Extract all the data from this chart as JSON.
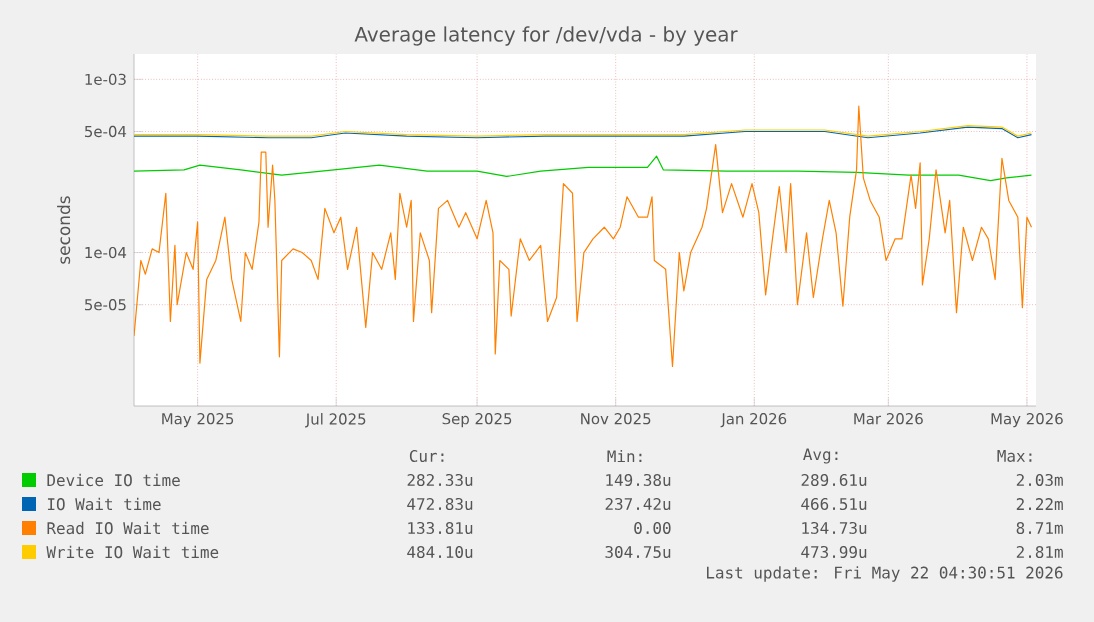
{
  "chart_data": {
    "type": "line",
    "title": "Average latency for /dev/vda - by year",
    "ylabel": "seconds",
    "log": true,
    "grid": true,
    "legend": "bottom",
    "xlim": [
      "2025-04-03",
      "2026-05-05"
    ],
    "ylim": [
      1.3e-05,
      0.0014
    ],
    "xticks": [
      {
        "value": "2025-05-01",
        "label": "May 2025"
      },
      {
        "value": "2025-07-01",
        "label": "Jul 2025"
      },
      {
        "value": "2025-09-01",
        "label": "Sep 2025"
      },
      {
        "value": "2025-11-01",
        "label": "Nov 2025"
      },
      {
        "value": "2026-01-01",
        "label": "Jan 2026"
      },
      {
        "value": "2026-03-01",
        "label": "Mar 2026"
      },
      {
        "value": "2026-05-01",
        "label": "May 2026"
      }
    ],
    "yticks": [
      {
        "value": 5e-05,
        "label": "5e-05"
      },
      {
        "value": 0.0001,
        "label": "1e-04"
      },
      {
        "value": 0.0005,
        "label": "5e-04"
      },
      {
        "value": 0.001,
        "label": "1e-03"
      }
    ],
    "series": [
      {
        "name": "Device IO time",
        "color": "#00cc00",
        "x": [
          "2025-04-03",
          "2025-04-25",
          "2025-05-02",
          "2025-05-20",
          "2025-06-07",
          "2025-06-30",
          "2025-07-20",
          "2025-08-10",
          "2025-09-01",
          "2025-09-14",
          "2025-09-29",
          "2025-10-20",
          "2025-11-15",
          "2025-11-19",
          "2025-11-22",
          "2025-12-20",
          "2026-01-20",
          "2026-02-15",
          "2026-03-10",
          "2026-04-01",
          "2026-04-15",
          "2026-04-22",
          "2026-05-03"
        ],
        "values": [
          0.000295,
          0.0003,
          0.00032,
          0.0003,
          0.00028,
          0.0003,
          0.00032,
          0.000295,
          0.000295,
          0.000275,
          0.000295,
          0.00031,
          0.00031,
          0.00036,
          0.0003,
          0.000295,
          0.000295,
          0.00029,
          0.00028,
          0.00028,
          0.00026,
          0.00027,
          0.00028
        ]
      },
      {
        "name": "IO Wait time",
        "color": "#0066b3",
        "x": [
          "2025-04-03",
          "2025-05-01",
          "2025-06-01",
          "2025-06-20",
          "2025-07-05",
          "2025-08-01",
          "2025-09-01",
          "2025-10-01",
          "2025-11-01",
          "2025-12-01",
          "2025-12-28",
          "2026-02-01",
          "2026-02-20",
          "2026-03-15",
          "2026-04-05",
          "2026-04-20",
          "2026-04-27",
          "2026-05-03"
        ],
        "values": [
          0.00047,
          0.00047,
          0.00046,
          0.00046,
          0.00049,
          0.00047,
          0.00046,
          0.00047,
          0.00047,
          0.00047,
          0.0005,
          0.0005,
          0.00046,
          0.00049,
          0.00053,
          0.00052,
          0.00046,
          0.00048
        ]
      },
      {
        "name": "Read IO Wait time",
        "color": "#ff8000",
        "x": [
          "2025-04-03",
          "2025-04-06",
          "2025-04-08",
          "2025-04-11",
          "2025-04-14",
          "2025-04-17",
          "2025-04-19",
          "2025-04-21",
          "2025-04-22",
          "2025-04-26",
          "2025-04-29",
          "2025-05-01",
          "2025-05-02",
          "2025-05-05",
          "2025-05-09",
          "2025-05-13",
          "2025-05-16",
          "2025-05-20",
          "2025-05-22",
          "2025-05-25",
          "2025-05-28",
          "2025-05-29",
          "2025-05-31",
          "2025-06-01",
          "2025-06-03",
          "2025-06-04",
          "2025-06-06",
          "2025-06-07",
          "2025-06-12",
          "2025-06-16",
          "2025-06-20",
          "2025-06-23",
          "2025-06-26",
          "2025-06-30",
          "2025-07-03",
          "2025-07-06",
          "2025-07-10",
          "2025-07-14",
          "2025-07-17",
          "2025-07-21",
          "2025-07-25",
          "2025-07-27",
          "2025-07-29",
          "2025-08-01",
          "2025-08-03",
          "2025-08-04",
          "2025-08-07",
          "2025-08-11",
          "2025-08-12",
          "2025-08-15",
          "2025-08-19",
          "2025-08-24",
          "2025-08-27",
          "2025-09-01",
          "2025-09-05",
          "2025-09-08",
          "2025-09-09",
          "2025-09-11",
          "2025-09-15",
          "2025-09-16",
          "2025-09-20",
          "2025-09-24",
          "2025-09-29",
          "2025-10-02",
          "2025-10-06",
          "2025-10-09",
          "2025-10-13",
          "2025-10-15",
          "2025-10-18",
          "2025-10-22",
          "2025-10-27",
          "2025-10-31",
          "2025-11-03",
          "2025-11-06",
          "2025-11-11",
          "2025-11-15",
          "2025-11-17",
          "2025-11-18",
          "2025-11-23",
          "2025-11-26",
          "2025-11-29",
          "2025-12-01",
          "2025-12-04",
          "2025-12-09",
          "2025-12-11",
          "2025-12-15",
          "2025-12-18",
          "2025-12-22",
          "2025-12-27",
          "2025-12-31",
          "2026-01-03",
          "2026-01-06",
          "2026-01-09",
          "2026-01-12",
          "2026-01-15",
          "2026-01-17",
          "2026-01-20",
          "2026-01-24",
          "2026-01-27",
          "2026-01-31",
          "2026-02-03",
          "2026-02-06",
          "2026-02-09",
          "2026-02-12",
          "2026-02-15",
          "2026-02-16",
          "2026-02-18",
          "2026-02-21",
          "2026-02-25",
          "2026-02-28",
          "2026-03-04",
          "2026-03-07",
          "2026-03-11",
          "2026-03-13",
          "2026-03-15",
          "2026-03-16",
          "2026-03-19",
          "2026-03-22",
          "2026-03-26",
          "2026-03-28",
          "2026-03-31",
          "2026-04-03",
          "2026-04-07",
          "2026-04-11",
          "2026-04-14",
          "2026-04-17",
          "2026-04-20",
          "2026-04-23",
          "2026-04-27",
          "2026-04-29",
          "2026-05-01",
          "2026-05-03"
        ],
        "values": [
          3.3e-05,
          9e-05,
          7.5e-05,
          0.000105,
          0.0001,
          0.00022,
          4e-05,
          0.00011,
          5e-05,
          0.0001,
          8e-05,
          0.00015,
          2.3e-05,
          7e-05,
          9e-05,
          0.00016,
          7e-05,
          4e-05,
          0.0001,
          8e-05,
          0.00015,
          0.00038,
          0.00038,
          0.00014,
          0.00032,
          0.0002,
          2.5e-05,
          9e-05,
          0.000105,
          0.0001,
          9e-05,
          7e-05,
          0.00018,
          0.00013,
          0.00016,
          8e-05,
          0.00014,
          3.7e-05,
          0.0001,
          8e-05,
          0.00013,
          7e-05,
          0.00022,
          0.00014,
          0.0002,
          4e-05,
          0.00013,
          9e-05,
          4.5e-05,
          0.00018,
          0.0002,
          0.00014,
          0.00017,
          0.00012,
          0.0002,
          0.00013,
          2.6e-05,
          9e-05,
          8e-05,
          4.3e-05,
          0.00012,
          9e-05,
          0.00011,
          4e-05,
          5.5e-05,
          0.00025,
          0.00022,
          4e-05,
          0.0001,
          0.00012,
          0.00014,
          0.00012,
          0.00014,
          0.00021,
          0.00016,
          0.00016,
          0.00021,
          9e-05,
          8e-05,
          2.2e-05,
          0.0001,
          6e-05,
          0.0001,
          0.00014,
          0.00018,
          0.00042,
          0.00017,
          0.00025,
          0.00016,
          0.00025,
          0.00017,
          5.7e-05,
          0.00012,
          0.00024,
          0.0001,
          0.00025,
          5e-05,
          0.00013,
          5.5e-05,
          0.00012,
          0.0002,
          0.00013,
          4.9e-05,
          0.00016,
          0.0003,
          0.0007,
          0.00027,
          0.0002,
          0.00016,
          9e-05,
          0.00012,
          0.00012,
          0.00028,
          0.00018,
          0.00033,
          6.5e-05,
          0.00012,
          0.0003,
          0.00013,
          0.0002,
          4.5e-05,
          0.00014,
          9e-05,
          0.00014,
          0.00012,
          7e-05,
          0.00035,
          0.0002,
          0.00016,
          4.8e-05,
          0.00016,
          0.00014
        ]
      },
      {
        "name": "Write IO Wait time",
        "color": "#ffcc00",
        "x": [
          "2025-04-03",
          "2025-05-01",
          "2025-06-01",
          "2025-06-20",
          "2025-07-05",
          "2025-08-01",
          "2025-09-01",
          "2025-10-01",
          "2025-11-01",
          "2025-12-01",
          "2025-12-28",
          "2026-02-01",
          "2026-02-20",
          "2026-03-15",
          "2026-04-05",
          "2026-04-20",
          "2026-04-27",
          "2026-05-03"
        ],
        "values": [
          0.00048,
          0.00048,
          0.00047,
          0.00047,
          0.0005,
          0.00048,
          0.00047,
          0.00048,
          0.00048,
          0.00048,
          0.00051,
          0.00051,
          0.00047,
          0.0005,
          0.00054,
          0.00053,
          0.00047,
          0.00049
        ]
      }
    ],
    "annotations": [
      "Cur:",
      "Min:",
      "Avg:",
      "Max:",
      "282.33u",
      "149.38u",
      "289.61u",
      "2.03m",
      "472.83u",
      "237.42u",
      "466.51u",
      "2.22m",
      "133.81u",
      "0.00",
      "134.73u",
      "8.71m",
      "484.10u",
      "304.75u",
      "473.99u",
      "2.81m",
      "Last update: Fri May 22 04:30:51 2026"
    ]
  }
}
